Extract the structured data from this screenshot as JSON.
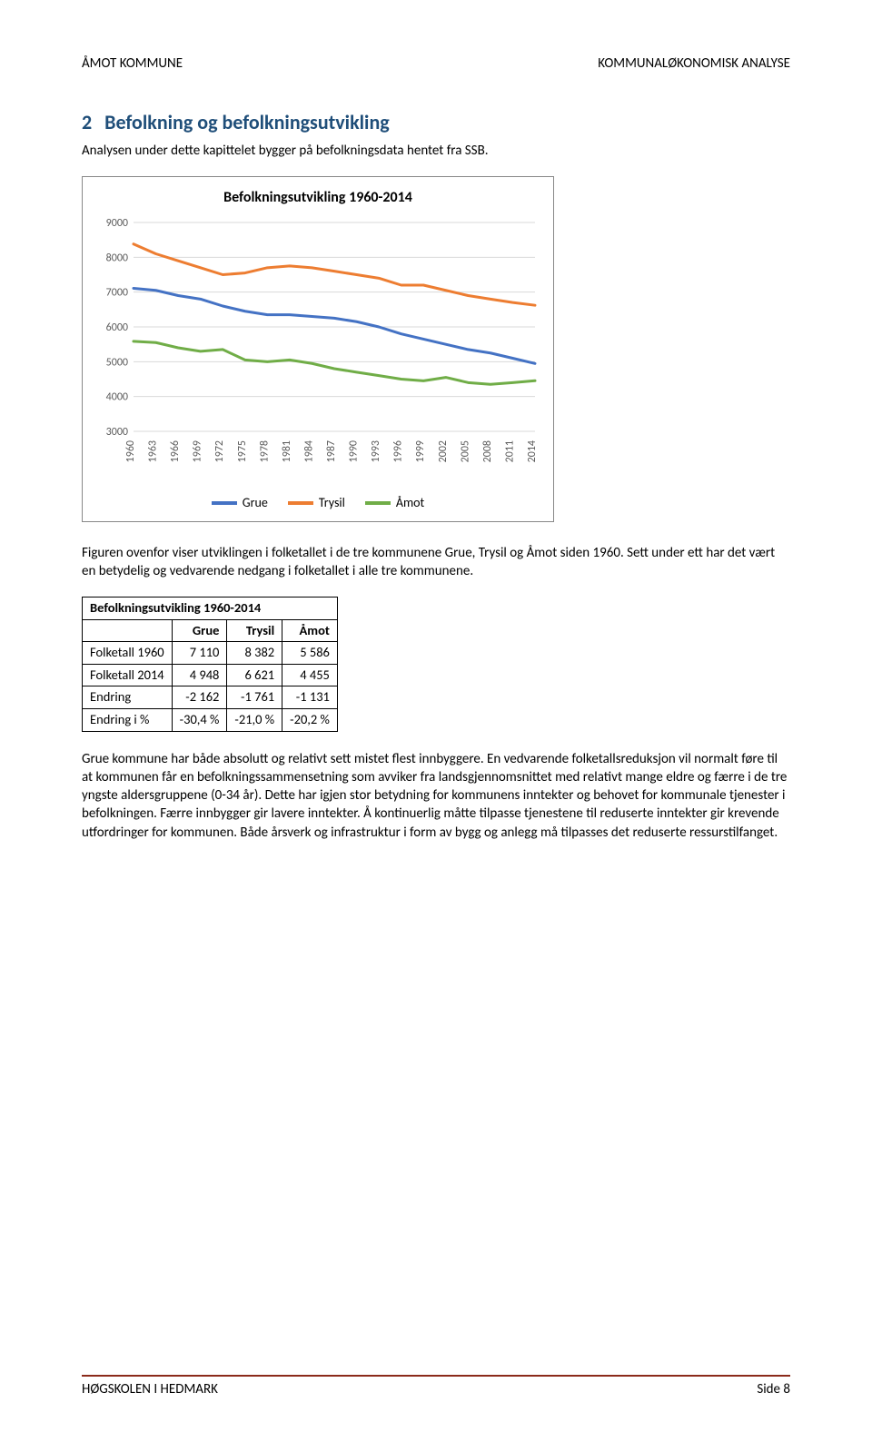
{
  "header": {
    "left": "ÅMOT KOMMUNE",
    "right": "KOMMUNALØKONOMISK ANALYSE"
  },
  "section": {
    "number": "2",
    "title": "Befolkning og befolkningsutvikling",
    "intro": "Analysen under dette kapittelet bygger på befolkningsdata hentet fra SSB."
  },
  "chart": {
    "type": "line",
    "title": "Befolkningsutvikling 1960-2014",
    "x_categories": [
      "1960",
      "1963",
      "1966",
      "1969",
      "1972",
      "1975",
      "1978",
      "1981",
      "1984",
      "1987",
      "1990",
      "1993",
      "1996",
      "1999",
      "2002",
      "2005",
      "2008",
      "2011",
      "2014"
    ],
    "ylim": [
      3000,
      9000
    ],
    "ytick_step": 1000,
    "grid_color": "#d9d9d9",
    "axis_color": "#808080",
    "background_color": "#ffffff",
    "tick_font_size": 12,
    "xlabel_rotation": -90,
    "line_width": 3,
    "series": [
      {
        "name": "Grue",
        "color": "#4472c4",
        "values": [
          7110,
          7050,
          6900,
          6800,
          6600,
          6450,
          6350,
          6350,
          6300,
          6250,
          6150,
          6000,
          5800,
          5650,
          5500,
          5350,
          5250,
          5100,
          4948
        ]
      },
      {
        "name": "Trysil",
        "color": "#ed7d31",
        "values": [
          8382,
          8100,
          7900,
          7700,
          7500,
          7550,
          7700,
          7750,
          7700,
          7600,
          7500,
          7400,
          7200,
          7200,
          7050,
          6900,
          6800,
          6700,
          6621
        ]
      },
      {
        "name": "Åmot",
        "color": "#70ad47",
        "values": [
          5586,
          5550,
          5400,
          5300,
          5350,
          5050,
          5000,
          5050,
          4950,
          4800,
          4700,
          4600,
          4500,
          4450,
          4550,
          4400,
          4350,
          4400,
          4455
        ]
      }
    ]
  },
  "para1": "Figuren ovenfor viser utviklingen i folketallet i de tre kommunene Grue, Trysil og Åmot siden 1960. Sett under ett har det vært en betydelig og vedvarende nedgang i folketallet i alle tre kommunene.",
  "table": {
    "title": "Befolkningsutvikling 1960-2014",
    "columns": [
      "",
      "Grue",
      "Trysil",
      "Åmot"
    ],
    "rows": [
      {
        "label": "Folketall 1960",
        "values": [
          "7 110",
          "8 382",
          "5 586"
        ]
      },
      {
        "label": "Folketall 2014",
        "values": [
          "4 948",
          "6 621",
          "4 455"
        ]
      },
      {
        "label": "Endring",
        "values": [
          "-2 162",
          "-1 761",
          "-1 131"
        ]
      },
      {
        "label": "Endring i %",
        "values": [
          "-30,4 %",
          "-21,0 %",
          "-20,2 %"
        ]
      }
    ]
  },
  "para2": "Grue kommune har både absolutt og relativt sett mistet flest innbyggere. En vedvarende folketallsreduksjon vil normalt føre til at kommunen får en befolkningssammensetning som avviker fra landsgjennomsnittet med relativt mange eldre og færre i de tre yngste aldersgruppene (0-34 år). Dette har igjen stor betydning for kommunens inntekter og behovet for kommunale tjenester i befolkningen. Færre innbygger gir lavere inntekter. Å kontinuerlig måtte tilpasse tjenestene til reduserte inntekter gir krevende utfordringer for kommunen. Både årsverk og infrastruktur i form av bygg og anlegg må tilpasses det reduserte ressurstilfanget.",
  "footer": {
    "left": "HØGSKOLEN I HEDMARK",
    "right": "Side 8"
  }
}
